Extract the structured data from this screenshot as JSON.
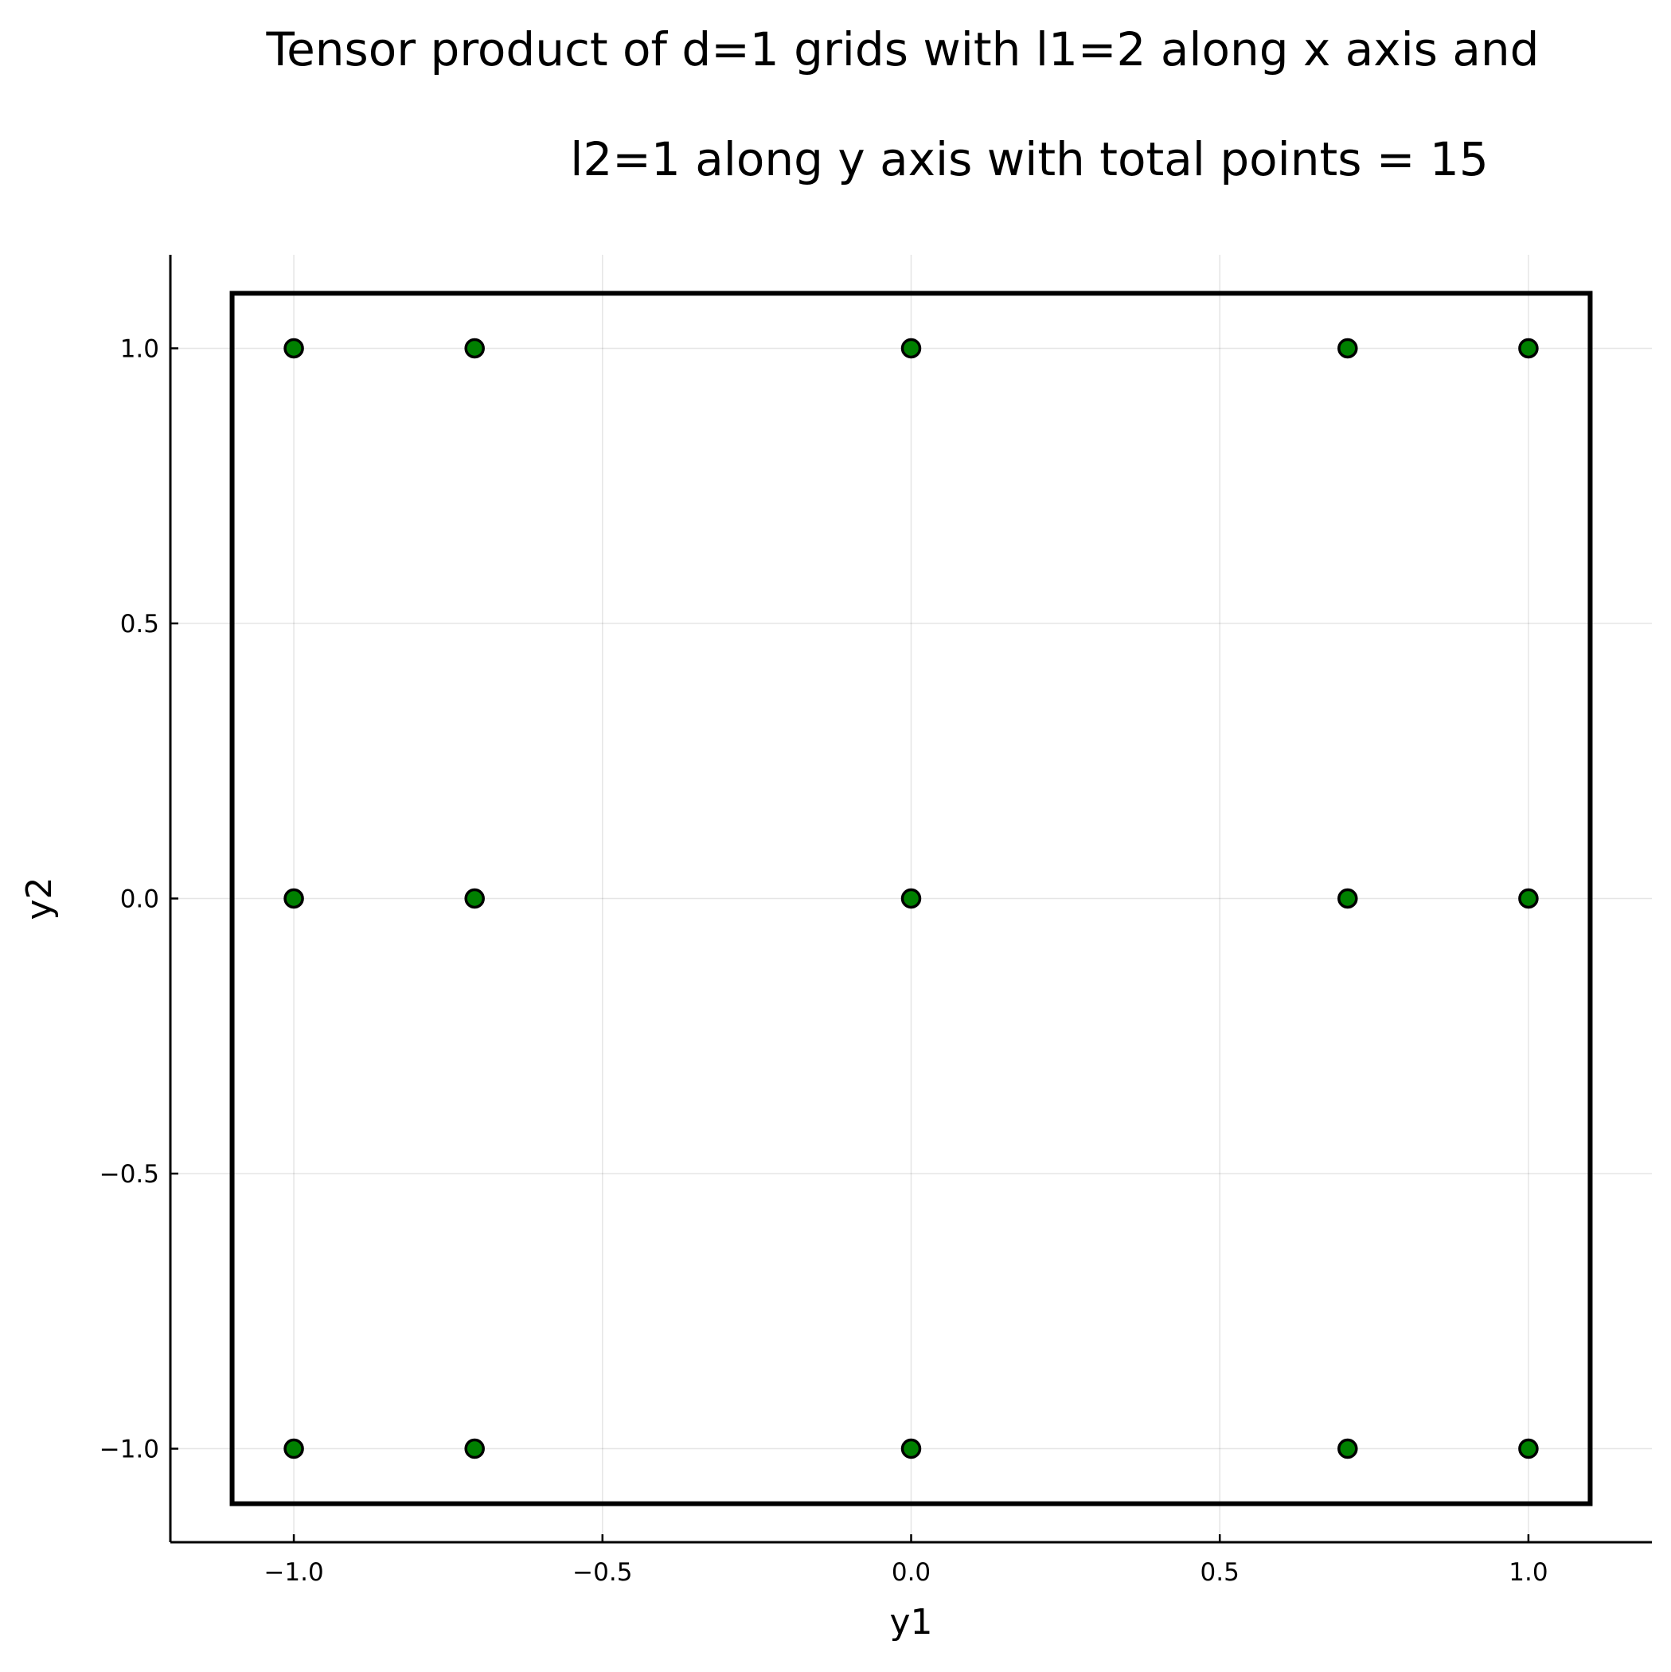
{
  "chart_data": {
    "type": "scatter",
    "title": [
      "Tensor product of d=1 grids with l1=2 along x axis and",
      "l2=1 along y axis with total points = 15"
    ],
    "xlabel": "y1",
    "ylabel": "y2",
    "xlim": [
      -1.2,
      1.2
    ],
    "ylim": [
      -1.17,
      1.17
    ],
    "xticks": [
      -1.0,
      -0.5,
      0.0,
      0.5,
      1.0
    ],
    "xtick_labels": [
      "−1.0",
      "−0.5",
      "0.0",
      "0.5",
      "1.0"
    ],
    "yticks": [
      -1.0,
      -0.5,
      0.0,
      0.5,
      1.0
    ],
    "ytick_labels": [
      "−1.0",
      "−0.5",
      "0.0",
      "0.5",
      "1.0"
    ],
    "grid": true,
    "legend": "none",
    "series": [
      {
        "marker_color": "#008000",
        "marker_edge_color": "#000000",
        "x": [
          -1.0,
          -0.7071,
          0.0,
          0.7071,
          1.0,
          -1.0,
          -0.7071,
          0.0,
          0.7071,
          1.0,
          -1.0,
          -0.7071,
          0.0,
          0.7071,
          1.0
        ],
        "y": [
          1.0,
          1.0,
          1.0,
          1.0,
          1.0,
          0.0,
          0.0,
          0.0,
          0.0,
          0.0,
          -1.0,
          -1.0,
          -1.0,
          -1.0,
          -1.0
        ]
      }
    ],
    "shapes": [
      {
        "type": "rectangle",
        "x0": -1.1,
        "x1": 1.1,
        "y0": -1.1,
        "y1": 1.1,
        "color": "#000000"
      }
    ]
  }
}
